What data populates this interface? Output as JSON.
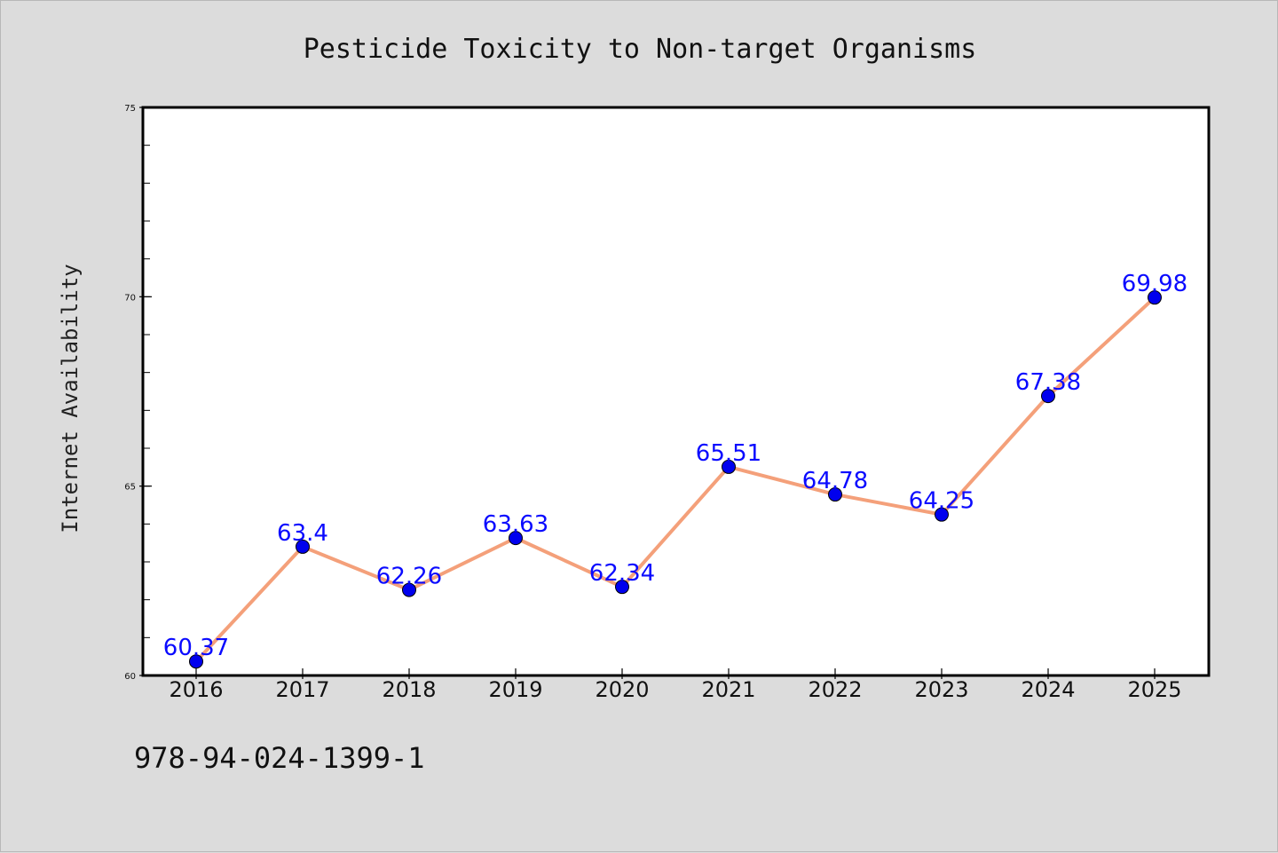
{
  "chart_data": {
    "type": "line",
    "title": "Pesticide Toxicity to Non-target Organisms",
    "xlabel": "",
    "ylabel": "Internet Availability",
    "categories": [
      "2016",
      "2017",
      "2018",
      "2019",
      "2020",
      "2021",
      "2022",
      "2023",
      "2024",
      "2025"
    ],
    "series": [
      {
        "values": [
          60.37,
          63.4,
          62.26,
          63.63,
          62.34,
          65.51,
          64.78,
          64.25,
          67.38,
          69.98
        ],
        "data_labels": [
          "60.37",
          "63.4",
          "62.26",
          "63.63",
          "62.34",
          "65.51",
          "64.78",
          "64.25",
          "67.38",
          "69.98"
        ],
        "line_color": "#f4a07a",
        "marker_color": "#0000ee"
      }
    ],
    "ylim": [
      60,
      75
    ],
    "yticks": [
      "60",
      "65",
      "70",
      "75"
    ],
    "grid": false,
    "legend": "none"
  },
  "footer": {
    "code": "978-94-024-1399-1"
  },
  "colors": {
    "background": "#dcdcdc",
    "plot_area": "#ffffff",
    "label_color": "#0a0aff"
  }
}
